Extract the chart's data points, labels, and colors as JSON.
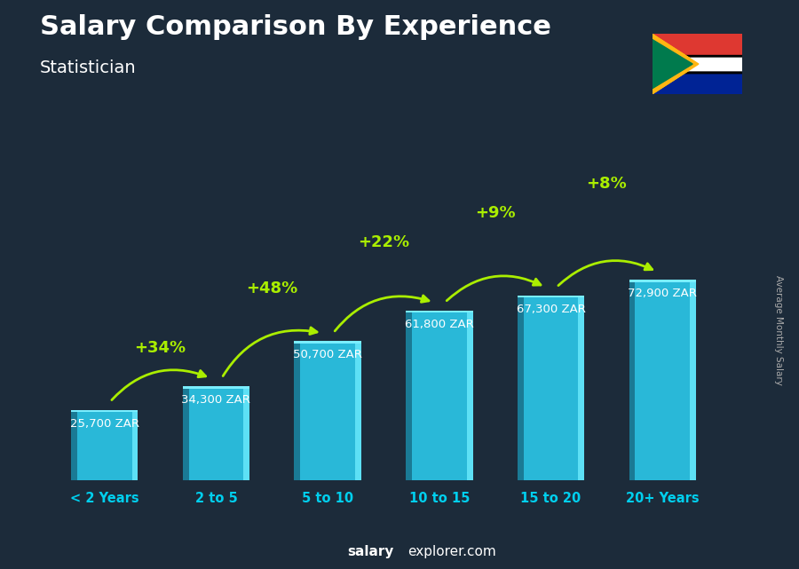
{
  "title": "Salary Comparison By Experience",
  "subtitle": "Statistician",
  "categories": [
    "< 2 Years",
    "2 to 5",
    "5 to 10",
    "10 to 15",
    "15 to 20",
    "20+ Years"
  ],
  "values": [
    25700,
    34300,
    50700,
    61800,
    67300,
    72900
  ],
  "labels": [
    "25,700 ZAR",
    "34,300 ZAR",
    "50,700 ZAR",
    "61,800 ZAR",
    "67,300 ZAR",
    "72,900 ZAR"
  ],
  "pct_changes": [
    "+34%",
    "+48%",
    "+22%",
    "+9%",
    "+8%"
  ],
  "bar_color_main": "#29b8d8",
  "bar_color_left": "#1a7a95",
  "bar_color_right": "#5de0f5",
  "bar_color_top": "#7aeeff",
  "bg_color": "#1c2b3a",
  "title_color": "#ffffff",
  "subtitle_color": "#ffffff",
  "label_color": "#ffffff",
  "pct_color": "#aaee00",
  "xcat_color": "#00cfee",
  "footer_bold": "salary",
  "footer_rest": "explorer.com",
  "footer_color": "#ffffff",
  "ylabel_text": "Average Monthly Salary",
  "ylabel_color": "#aaaaaa"
}
